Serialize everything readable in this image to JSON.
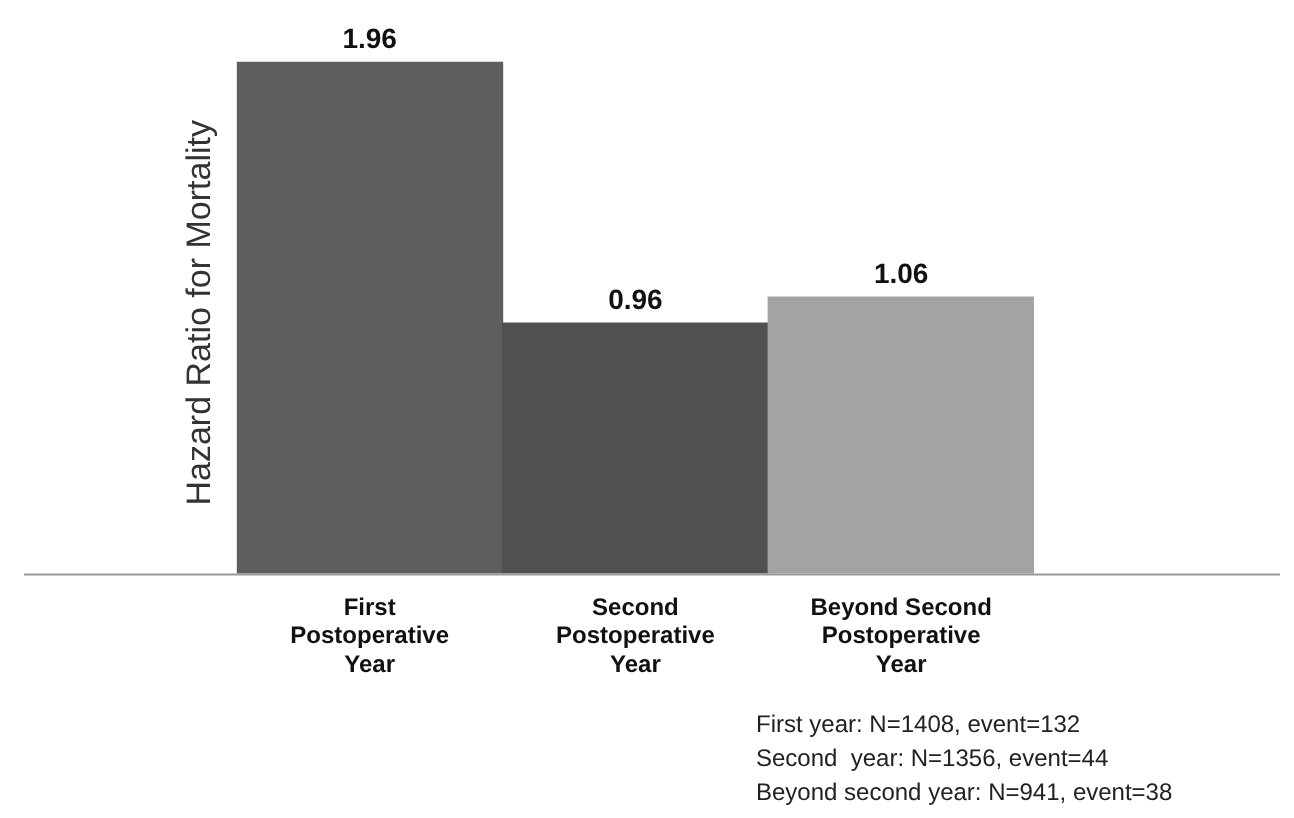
{
  "chart_data": {
    "type": "bar",
    "ylabel": "Hazard Ratio for Mortality",
    "categories": [
      "First Postoperative Year",
      "Second Postoperative Year",
      "Beyond Second Postoperative Year"
    ],
    "values": [
      1.96,
      0.96,
      1.06
    ],
    "colors": [
      "#5e5e5e",
      "#505050",
      "#a3a3a3"
    ],
    "data_labels": true,
    "grid": false,
    "legend": false,
    "tick_labels": "x",
    "annotations": [
      "First year: N=1408, event=132",
      "Second  year: N=1356, event=44",
      "Beyond second year: N=941, event=38"
    ]
  }
}
